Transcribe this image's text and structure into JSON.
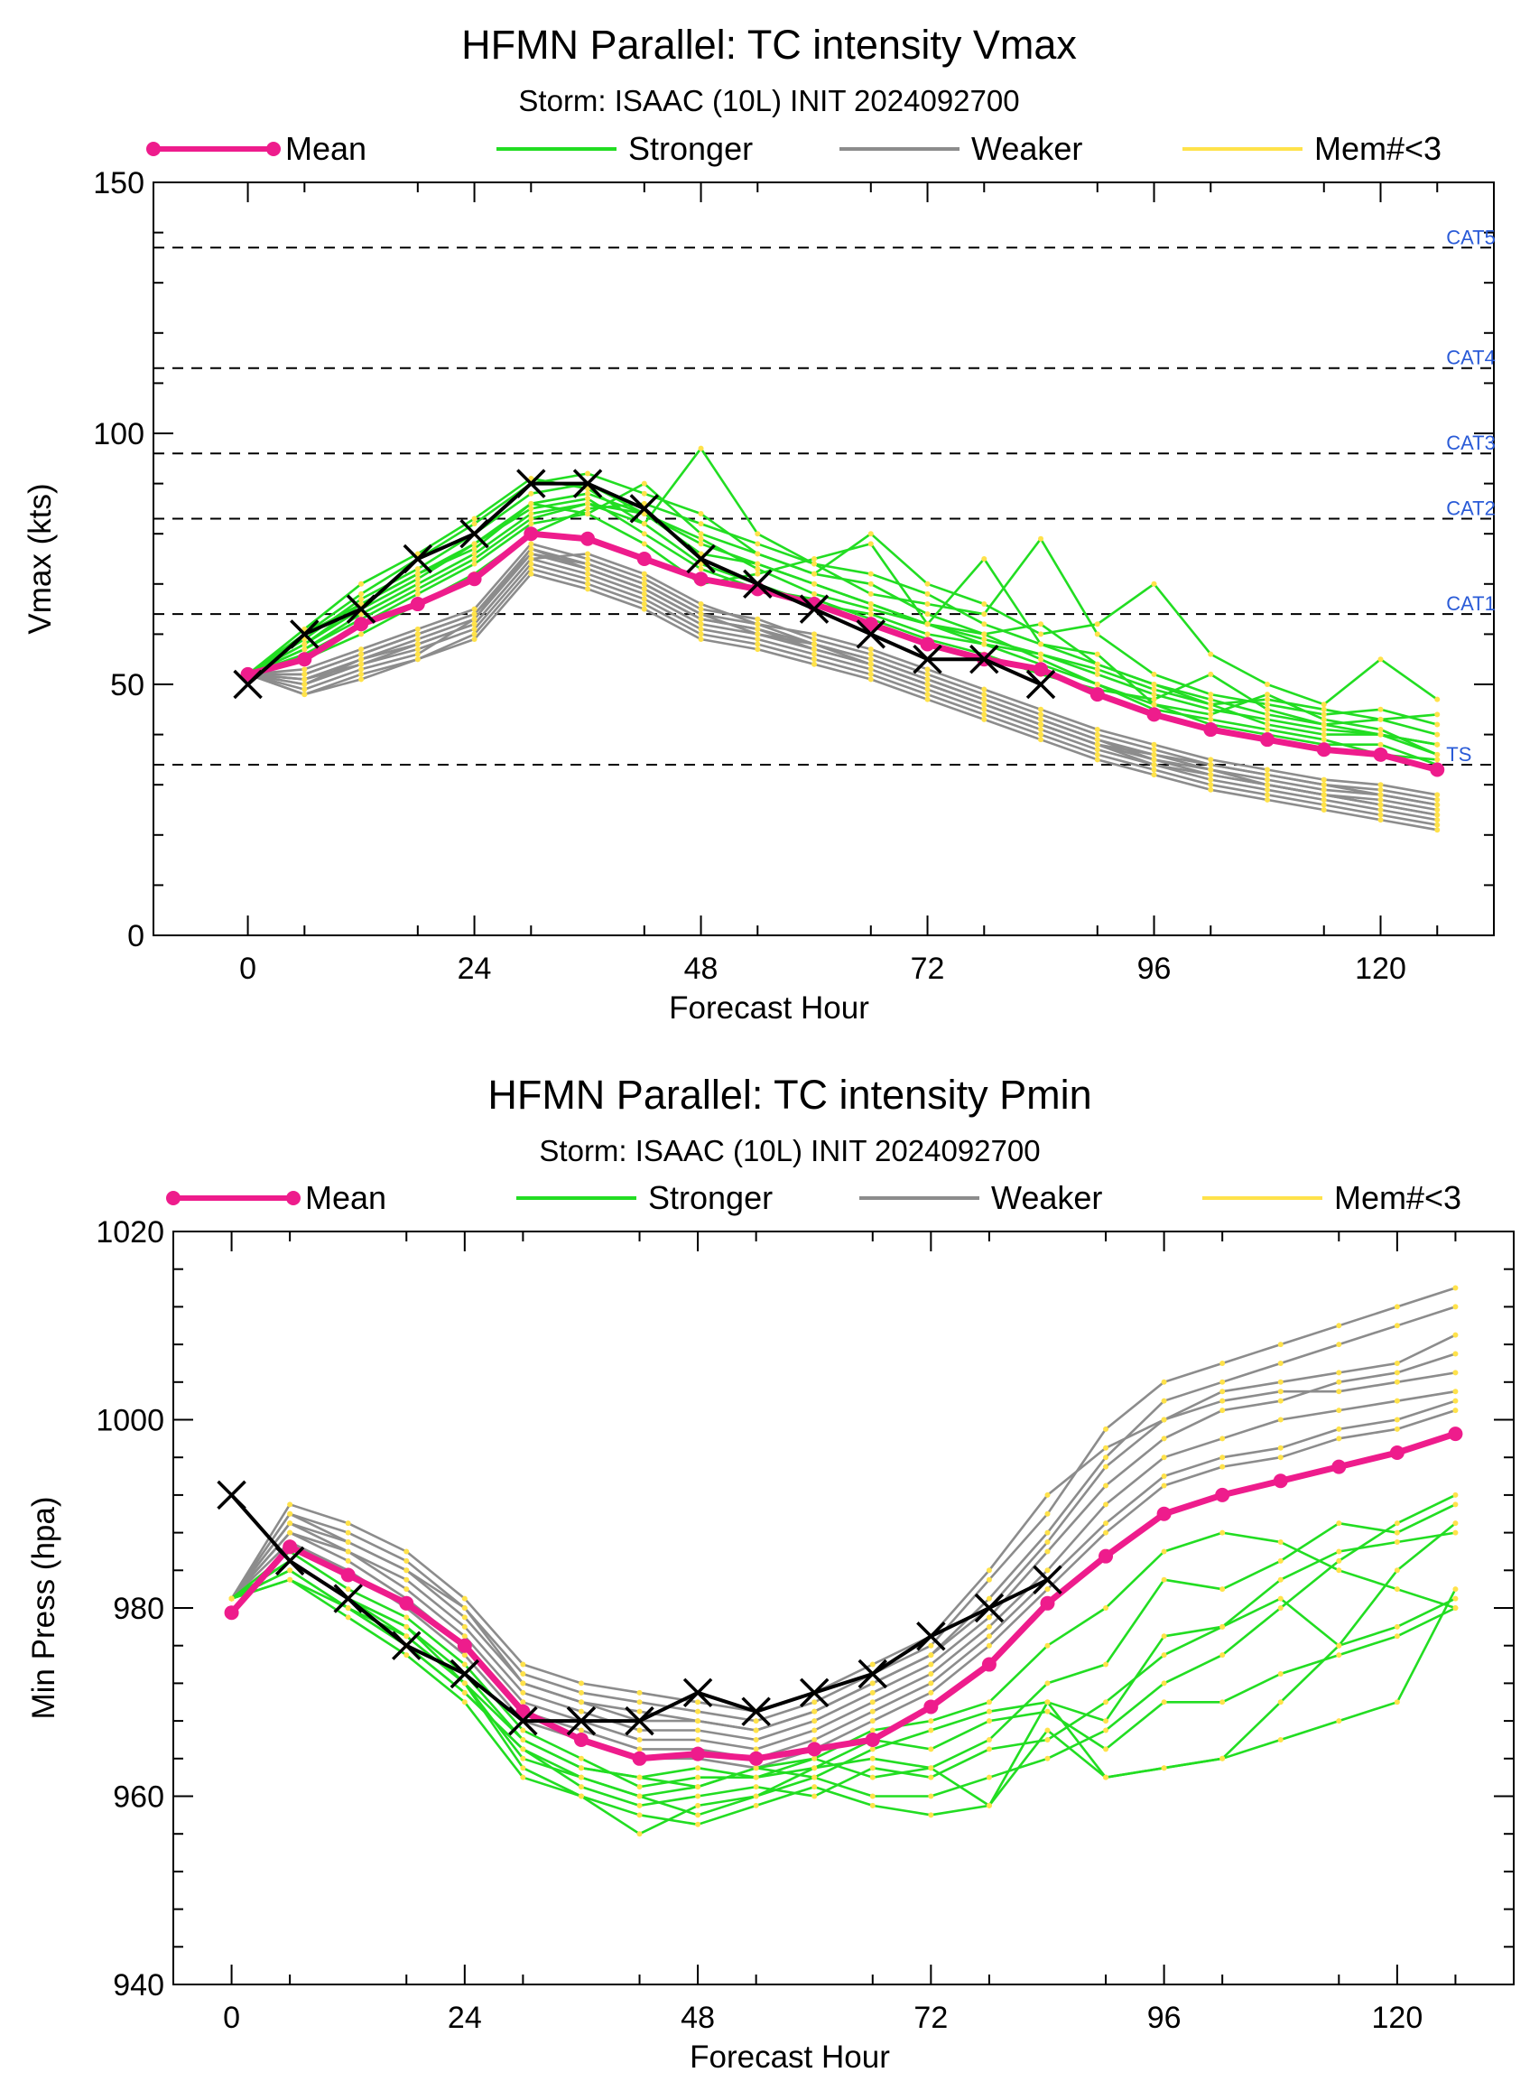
{
  "colors": {
    "mean": "#ee1c8c",
    "stronger": "#22dd22",
    "weaker": "#8c8c8c",
    "member_dot": "#ffe24a",
    "obs": "#000000",
    "category_label": "#2a5bd7"
  },
  "legend": {
    "mean": "Mean",
    "stronger": "Stronger",
    "weaker": "Weaker",
    "members": "Mem#<3"
  },
  "chart_data": [
    {
      "type": "line",
      "title": "HFMN Parallel: TC intensity Vmax",
      "subtitle": "Storm: ISAAC (10L) INIT 2024092700",
      "xlabel": "Forecast Hour",
      "ylabel": "Vmax (kts)",
      "xlim": [
        -10,
        132
      ],
      "ylim": [
        0,
        150
      ],
      "xticks": [
        0,
        24,
        48,
        72,
        96,
        120
      ],
      "xtick_labels": [
        "0",
        "24",
        "48",
        "72",
        "96",
        "120"
      ],
      "yticks": [
        0,
        50,
        100,
        150
      ],
      "ytick_labels": [
        "0",
        "50",
        "100",
        "150"
      ],
      "grid": false,
      "legend_position": "top",
      "reference_lines": [
        {
          "label": "CAT5",
          "y": 137
        },
        {
          "label": "CAT4",
          "y": 113
        },
        {
          "label": "CAT3",
          "y": 96
        },
        {
          "label": "CAT2",
          "y": 83
        },
        {
          "label": "CAT1",
          "y": 64
        },
        {
          "label": "TS",
          "y": 34
        }
      ],
      "x": [
        0,
        6,
        12,
        18,
        24,
        30,
        36,
        42,
        48,
        54,
        60,
        66,
        72,
        78,
        84,
        90,
        96,
        102,
        108,
        114,
        120,
        126
      ],
      "mean": [
        52,
        55,
        62,
        66,
        71,
        80,
        79,
        75,
        71,
        69,
        66,
        62,
        58,
        55,
        53,
        48,
        44,
        41,
        39,
        37,
        36,
        33
      ],
      "obs": [
        50,
        60,
        65,
        75,
        80,
        90,
        90,
        85,
        75,
        70,
        65,
        60,
        55,
        55,
        50
      ],
      "members_stronger": [
        [
          52,
          58,
          66,
          72,
          77,
          86,
          88,
          84,
          78,
          74,
          70,
          66,
          62,
          58,
          56,
          52,
          48,
          45,
          43,
          41,
          40,
          38
        ],
        [
          52,
          60,
          68,
          75,
          82,
          90,
          92,
          88,
          84,
          76,
          72,
          70,
          64,
          60,
          62,
          54,
          50,
          47,
          44,
          42,
          43,
          40
        ],
        [
          52,
          57,
          64,
          70,
          76,
          84,
          86,
          82,
          97,
          80,
          74,
          68,
          66,
          64,
          79,
          60,
          52,
          48,
          46,
          44,
          45,
          42
        ],
        [
          52,
          56,
          62,
          68,
          74,
          82,
          84,
          90,
          80,
          76,
          72,
          80,
          70,
          66,
          60,
          62,
          70,
          56,
          50,
          46,
          55,
          47
        ],
        [
          52,
          59,
          67,
          73,
          80,
          88,
          90,
          84,
          76,
          74,
          70,
          66,
          62,
          75,
          58,
          54,
          50,
          46,
          42,
          40,
          40,
          36
        ],
        [
          52,
          61,
          70,
          76,
          83,
          91,
          89,
          82,
          74,
          70,
          66,
          64,
          60,
          58,
          54,
          50,
          46,
          44,
          48,
          43,
          41,
          36
        ],
        [
          52,
          55,
          60,
          66,
          72,
          80,
          85,
          86,
          82,
          78,
          74,
          72,
          68,
          62,
          58,
          56,
          46,
          42,
          40,
          38,
          38,
          34
        ],
        [
          52,
          58,
          65,
          71,
          78,
          85,
          87,
          80,
          73,
          69,
          67,
          63,
          59,
          56,
          52,
          49,
          47,
          52,
          45,
          42,
          40,
          38
        ],
        [
          52,
          60,
          66,
          72,
          78,
          86,
          84,
          78,
          70,
          72,
          75,
          78,
          62,
          60,
          55,
          50,
          45,
          43,
          41,
          39,
          36,
          35
        ],
        [
          52,
          57,
          63,
          69,
          75,
          83,
          86,
          84,
          79,
          73,
          68,
          65,
          62,
          59,
          56,
          53,
          49,
          46,
          47,
          45,
          43,
          44
        ]
      ],
      "members_weaker": [
        [
          52,
          50,
          55,
          58,
          62,
          75,
          72,
          68,
          62,
          60,
          58,
          54,
          50,
          46,
          42,
          38,
          34,
          32,
          30,
          28,
          26,
          24
        ],
        [
          52,
          48,
          52,
          55,
          60,
          73,
          70,
          66,
          60,
          58,
          55,
          52,
          48,
          44,
          40,
          36,
          33,
          30,
          28,
          26,
          24,
          22
        ],
        [
          52,
          52,
          56,
          60,
          64,
          76,
          74,
          70,
          64,
          62,
          58,
          55,
          51,
          47,
          43,
          39,
          35,
          33,
          30,
          28,
          27,
          25
        ],
        [
          52,
          51,
          54,
          57,
          61,
          74,
          71,
          67,
          61,
          59,
          56,
          53,
          49,
          45,
          41,
          37,
          34,
          31,
          29,
          27,
          25,
          23
        ],
        [
          52,
          49,
          53,
          56,
          63,
          77,
          73,
          69,
          63,
          61,
          57,
          54,
          50,
          46,
          42,
          38,
          36,
          33,
          31,
          29,
          28,
          26
        ],
        [
          52,
          53,
          57,
          61,
          65,
          78,
          75,
          71,
          65,
          63,
          59,
          56,
          52,
          48,
          44,
          40,
          37,
          34,
          32,
          30,
          29,
          27
        ],
        [
          52,
          50,
          54,
          58,
          62,
          75,
          76,
          72,
          66,
          62,
          60,
          57,
          53,
          49,
          45,
          41,
          38,
          35,
          33,
          31,
          30,
          28
        ],
        [
          52,
          48,
          51,
          55,
          59,
          72,
          69,
          65,
          59,
          57,
          54,
          51,
          47,
          43,
          39,
          35,
          32,
          29,
          27,
          25,
          23,
          21
        ],
        [
          52,
          52,
          56,
          60,
          64,
          77,
          74,
          70,
          64,
          60,
          57,
          54,
          50,
          46,
          42,
          38,
          35,
          32,
          30,
          28,
          26,
          24
        ],
        [
          52,
          51,
          55,
          59,
          63,
          76,
          73,
          69,
          63,
          61,
          58,
          55,
          51,
          47,
          43,
          39,
          36,
          34,
          32,
          30,
          28,
          26
        ]
      ]
    },
    {
      "type": "line",
      "title": "HFMN Parallel: TC intensity Pmin",
      "subtitle": "Storm: ISAAC (10L) INIT 2024092700",
      "xlabel": "Forecast Hour",
      "ylabel": "Min Press (hpa)",
      "xlim": [
        -6,
        132
      ],
      "ylim": [
        940,
        1020
      ],
      "xticks": [
        0,
        24,
        48,
        72,
        96,
        120
      ],
      "xtick_labels": [
        "0",
        "24",
        "48",
        "72",
        "96",
        "120"
      ],
      "yticks": [
        940,
        960,
        980,
        1000,
        1020
      ],
      "ytick_labels": [
        "940",
        "960",
        "980",
        "1000",
        "1020"
      ],
      "grid": false,
      "legend_position": "top",
      "x": [
        0,
        6,
        12,
        18,
        24,
        30,
        36,
        42,
        48,
        54,
        60,
        66,
        72,
        78,
        84,
        90,
        96,
        102,
        108,
        114,
        120,
        126
      ],
      "mean": [
        979.5,
        986.5,
        983.5,
        980.5,
        976,
        969,
        966,
        964,
        964.5,
        964,
        965,
        966,
        969.5,
        974,
        980.5,
        985.5,
        990,
        992,
        993.5,
        995,
        996.5,
        998.5
      ],
      "obs": [
        992,
        985,
        981,
        976,
        973,
        968,
        968,
        968,
        971,
        969,
        971,
        973,
        977,
        980,
        983
      ],
      "members_stronger": [
        [
          981,
          984,
          980,
          977,
          972,
          964,
          962,
          960,
          958,
          960,
          962,
          960,
          960,
          962,
          964,
          967,
          972,
          975,
          980,
          985,
          989,
          992
        ],
        [
          981,
          985,
          981,
          978,
          973,
          966,
          963,
          962,
          961,
          963,
          964,
          962,
          963,
          959,
          967,
          962,
          963,
          964,
          970,
          976,
          978,
          981
        ],
        [
          981,
          983,
          979,
          975,
          970,
          962,
          960,
          958,
          957,
          959,
          961,
          959,
          958,
          959,
          970,
          968,
          977,
          978,
          981,
          976,
          984,
          989
        ],
        [
          981,
          986,
          982,
          979,
          974,
          967,
          964,
          961,
          962,
          962,
          963,
          964,
          963,
          966,
          972,
          974,
          983,
          982,
          985,
          989,
          988,
          991
        ],
        [
          981,
          984,
          980,
          976,
          971,
          965,
          961,
          959,
          960,
          961,
          960,
          963,
          962,
          965,
          966,
          970,
          975,
          978,
          983,
          986,
          987,
          988
        ],
        [
          981,
          985,
          981,
          977,
          972,
          963,
          960,
          956,
          959,
          960,
          963,
          966,
          965,
          968,
          969,
          965,
          970,
          970,
          973,
          975,
          977,
          980
        ],
        [
          981,
          983,
          980,
          976,
          971,
          965,
          962,
          960,
          961,
          963,
          962,
          965,
          967,
          969,
          970,
          962,
          963,
          964,
          966,
          968,
          970,
          982
        ],
        [
          981,
          985,
          981,
          978,
          972,
          966,
          963,
          962,
          963,
          962,
          964,
          967,
          968,
          970,
          976,
          980,
          986,
          988,
          987,
          984,
          982,
          980
        ]
      ],
      "members_weaker": [
        [
          981,
          990,
          988,
          985,
          980,
          973,
          971,
          970,
          969,
          968,
          970,
          973,
          976,
          983,
          990,
          999,
          1004,
          1006,
          1008,
          1010,
          1012,
          1014
        ],
        [
          981,
          989,
          987,
          984,
          979,
          972,
          970,
          968,
          968,
          967,
          969,
          972,
          975,
          981,
          988,
          996,
          1002,
          1004,
          1006,
          1008,
          1010,
          1012
        ],
        [
          981,
          991,
          989,
          986,
          981,
          974,
          972,
          971,
          970,
          969,
          971,
          974,
          977,
          984,
          992,
          997,
          1000,
          1003,
          1004,
          1005,
          1006,
          1009
        ],
        [
          981,
          988,
          986,
          983,
          978,
          971,
          969,
          967,
          967,
          966,
          968,
          971,
          974,
          979,
          986,
          993,
          998,
          1001,
          1002,
          1004,
          1005,
          1007
        ],
        [
          981,
          990,
          987,
          984,
          980,
          972,
          970,
          969,
          968,
          967,
          969,
          972,
          975,
          980,
          987,
          995,
          1000,
          1002,
          1003,
          1003,
          1004,
          1005
        ],
        [
          981,
          989,
          986,
          982,
          977,
          970,
          968,
          966,
          966,
          965,
          967,
          970,
          973,
          978,
          984,
          991,
          996,
          998,
          1000,
          1001,
          1002,
          1003
        ],
        [
          981,
          988,
          985,
          981,
          976,
          969,
          967,
          965,
          965,
          964,
          966,
          969,
          972,
          977,
          983,
          989,
          994,
          996,
          997,
          999,
          1000,
          1002
        ],
        [
          981,
          987,
          984,
          980,
          975,
          968,
          966,
          964,
          964,
          963,
          965,
          968,
          971,
          976,
          982,
          988,
          993,
          995,
          996,
          998,
          999,
          1001
        ]
      ]
    }
  ]
}
